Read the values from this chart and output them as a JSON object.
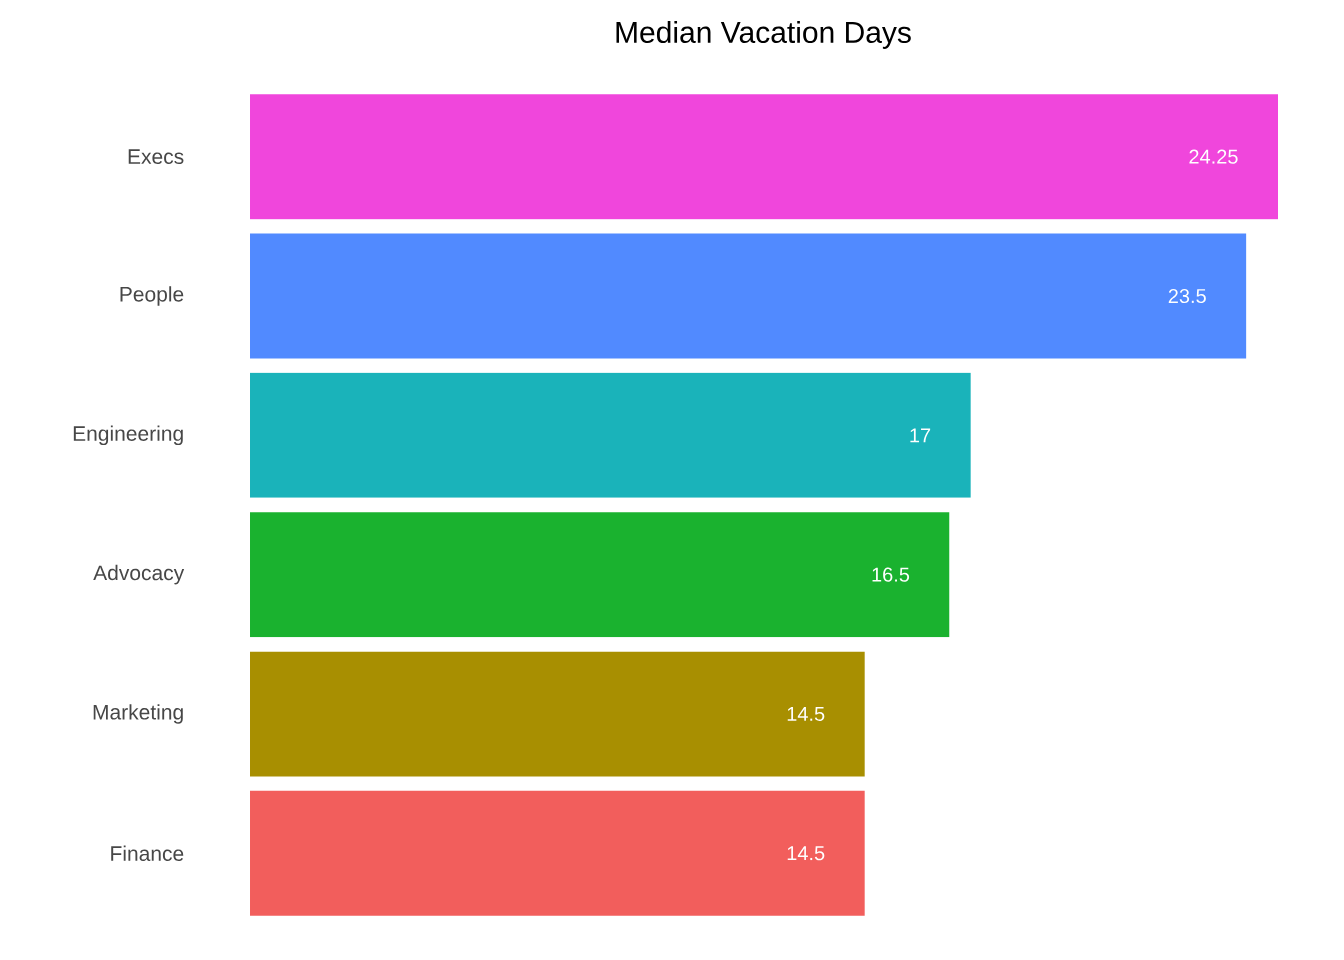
{
  "chart_data": {
    "type": "bar",
    "orientation": "horizontal",
    "title": "Median Vacation Days",
    "categories": [
      "Execs",
      "People",
      "Engineering",
      "Advocacy",
      "Marketing",
      "Finance"
    ],
    "values": [
      24.25,
      23.5,
      17,
      16.5,
      14.5,
      14.5
    ],
    "colors": [
      "#f046dc",
      "#518aff",
      "#1ab3ba",
      "#1ab22f",
      "#a88f01",
      "#f25e5c"
    ],
    "data_labels": true,
    "tick_labels": "y"
  }
}
